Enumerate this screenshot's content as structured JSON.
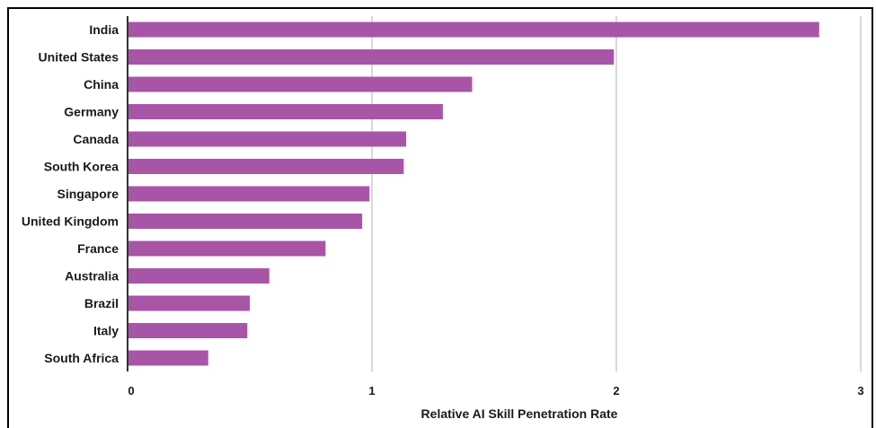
{
  "chart_data": {
    "type": "bar",
    "orientation": "horizontal",
    "categories": [
      "India",
      "United States",
      "China",
      "Germany",
      "Canada",
      "South Korea",
      "Singapore",
      "United Kingdom",
      "France",
      "Australia",
      "Brazil",
      "Italy",
      "South Africa"
    ],
    "values": [
      2.83,
      1.99,
      1.41,
      1.29,
      1.14,
      1.13,
      0.99,
      0.96,
      0.81,
      0.58,
      0.5,
      0.49,
      0.33
    ],
    "xlabel": "Relative AI Skill Penetration Rate",
    "ylabel": "",
    "xlim": [
      0,
      3
    ],
    "xticks": [
      "0",
      "1",
      "2",
      "3"
    ],
    "grid": "vertical",
    "bar_color": "#a855a8",
    "grid_color": "#cccccc",
    "axis_color": "#333333"
  }
}
